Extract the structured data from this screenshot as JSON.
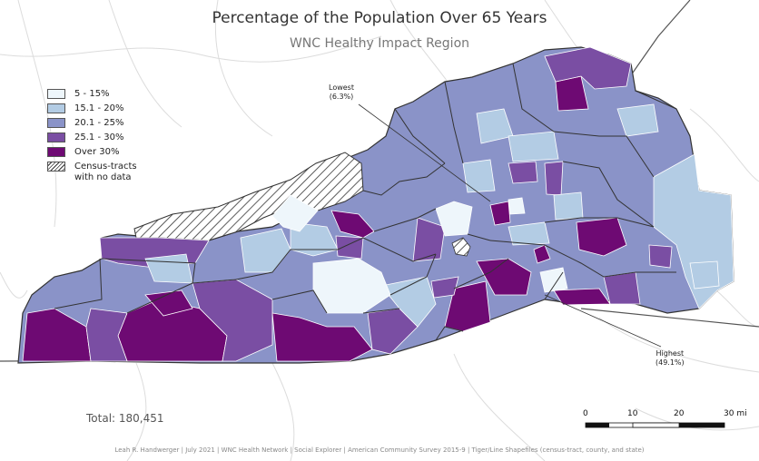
{
  "title": "Percentage of the Population Over 65 Years",
  "subtitle": "WNC Healthy Impact Region",
  "legend": {
    "items": [
      {
        "label": "5 - 15%",
        "color": "#eef6fb"
      },
      {
        "label": "15.1 - 20%",
        "color": "#b3cce4"
      },
      {
        "label": "20.1 - 25%",
        "color": "#8a93c8"
      },
      {
        "label": "25.1 - 30%",
        "color": "#7a4ea3"
      },
      {
        "label": "Over 30%",
        "color": "#6e0a73"
      }
    ],
    "no_data": {
      "line1": "Census-tracts",
      "line2": "with no data"
    }
  },
  "callouts": {
    "lowest": {
      "label": "Lowest",
      "value": "(6.3%)"
    },
    "highest": {
      "label": "Highest",
      "value": "(49.1%)"
    }
  },
  "total": "Total: 180,451",
  "scale_bar": {
    "unit": "mi",
    "ticks": [
      "0",
      "10",
      "20",
      "30 mi"
    ]
  },
  "credit": "Leah R. Handwerger | July 2021 | WNC Health Network | Social Explorer | American Community Survey 2015-9 | Tiger/Line Shapefiles (census-tract, county, and state)"
}
